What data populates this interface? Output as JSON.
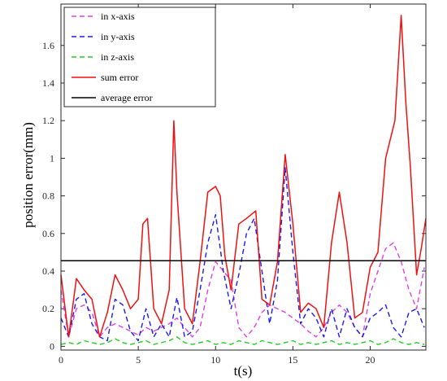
{
  "chart_data": {
    "type": "line",
    "xlabel": "t(s)",
    "ylabel": "position error(mm)",
    "xlim": [
      0,
      23.6
    ],
    "ylim": [
      -0.02,
      1.82
    ],
    "xticks": [
      0,
      5,
      10,
      15,
      20
    ],
    "xtick_labels": [
      "0",
      "5",
      "10",
      "15",
      "20"
    ],
    "yticks": [
      0,
      0.2,
      0.4,
      0.6,
      0.8,
      1.0,
      1.2,
      1.4,
      1.6
    ],
    "ytick_labels": [
      "0",
      "0.2",
      "0.4",
      "0.6",
      "0.8",
      "1",
      "1.2",
      "1.4",
      "1.6"
    ],
    "grid": false,
    "legend_position": "top-left",
    "series": [
      {
        "name": "in x-axis",
        "color": "#e040e0",
        "dash": "dashed",
        "x": [
          0,
          0.5,
          1,
          1.5,
          2,
          2.5,
          3,
          3.5,
          4,
          4.5,
          5,
          5.5,
          6,
          6.5,
          7,
          7.5,
          8,
          8.5,
          9,
          9.5,
          10,
          10.5,
          11,
          11.5,
          12,
          12.5,
          13,
          13.5,
          14,
          14.5,
          15,
          15.5,
          16,
          16.5,
          17,
          17.5,
          18,
          18.5,
          19,
          19.5,
          20,
          20.5,
          21,
          21.5,
          22,
          22.5,
          23,
          23.5
        ],
        "values": [
          0.3,
          0.05,
          0.2,
          0.22,
          0.18,
          0.05,
          0.1,
          0.12,
          0.1,
          0.08,
          0.06,
          0.1,
          0.08,
          0.1,
          0.12,
          0.15,
          0.1,
          0.05,
          0.1,
          0.3,
          0.45,
          0.4,
          0.35,
          0.1,
          0.05,
          0.1,
          0.18,
          0.22,
          0.2,
          0.18,
          0.15,
          0.12,
          0.08,
          0.05,
          0.1,
          0.18,
          0.22,
          0.18,
          0.1,
          0.05,
          0.28,
          0.4,
          0.52,
          0.55,
          0.45,
          0.3,
          0.2,
          0.42
        ]
      },
      {
        "name": "in y-axis",
        "color": "#1a1aee",
        "dash": "dashed",
        "x": [
          0,
          0.5,
          1,
          1.5,
          2,
          2.5,
          3,
          3.5,
          4,
          4.5,
          5,
          5.5,
          6,
          6.5,
          7,
          7.5,
          8,
          8.5,
          9,
          9.5,
          10,
          10.5,
          11,
          11.5,
          12,
          12.5,
          13,
          13.5,
          14,
          14.5,
          15,
          15.5,
          16,
          16.5,
          17,
          17.5,
          18,
          18.5,
          19,
          19.5,
          20,
          20.5,
          21,
          21.5,
          22,
          22.5,
          23,
          23.5
        ],
        "values": [
          0.15,
          0.05,
          0.25,
          0.28,
          0.12,
          0.05,
          0.03,
          0.25,
          0.22,
          0.08,
          0.03,
          0.2,
          0.05,
          0.12,
          0.05,
          0.26,
          0.05,
          0.08,
          0.3,
          0.55,
          0.7,
          0.4,
          0.2,
          0.38,
          0.6,
          0.68,
          0.4,
          0.12,
          0.35,
          0.95,
          0.5,
          0.12,
          0.2,
          0.15,
          0.05,
          0.2,
          0.05,
          0.2,
          0.1,
          0.05,
          0.15,
          0.18,
          0.22,
          0.1,
          0.05,
          0.18,
          0.2,
          0.1
        ]
      },
      {
        "name": "in z-axis",
        "color": "#22cc22",
        "dash": "dashed",
        "x": [
          0,
          0.5,
          1,
          1.5,
          2,
          2.5,
          3,
          3.5,
          4,
          4.5,
          5,
          5.5,
          6,
          6.5,
          7,
          7.5,
          8,
          8.5,
          9,
          9.5,
          10,
          10.5,
          11,
          11.5,
          12,
          12.5,
          13,
          13.5,
          14,
          14.5,
          15,
          15.5,
          16,
          16.5,
          17,
          17.5,
          18,
          18.5,
          19,
          19.5,
          20,
          20.5,
          21,
          21.5,
          22,
          22.5,
          23,
          23.5
        ],
        "values": [
          0.01,
          0.02,
          0.01,
          0.03,
          0.02,
          0.01,
          0.02,
          0.04,
          0.02,
          0.01,
          0.02,
          0.03,
          0.01,
          0.02,
          0.03,
          0.05,
          0.02,
          0.01,
          0.02,
          0.03,
          0.01,
          0.02,
          0.01,
          0.03,
          0.02,
          0.01,
          0.03,
          0.02,
          0.01,
          0.02,
          0.03,
          0.01,
          0.02,
          0.01,
          0.02,
          0.03,
          0.01,
          0.02,
          0.01,
          0.02,
          0.03,
          0.01,
          0.02,
          0.04,
          0.02,
          0.01,
          0.02,
          0.01
        ]
      },
      {
        "name": "sum error",
        "color": "#ee1111",
        "dash": "solid",
        "x": [
          0,
          0.5,
          1,
          1.5,
          2,
          2.5,
          3,
          3.5,
          4,
          4.5,
          5,
          5.3,
          5.6,
          6,
          6.5,
          7,
          7.3,
          7.5,
          8,
          8.5,
          9,
          9.5,
          10,
          10.3,
          10.6,
          11,
          11.5,
          12,
          12.3,
          12.6,
          13,
          13.5,
          14,
          14.5,
          15,
          15.5,
          16,
          16.5,
          17,
          17.5,
          18,
          18.5,
          19,
          19.5,
          20,
          20.5,
          21,
          21.3,
          21.6,
          22,
          22.3,
          22.6,
          23,
          23.3,
          23.6
        ],
        "values": [
          0.38,
          0.05,
          0.36,
          0.3,
          0.25,
          0.05,
          0.18,
          0.38,
          0.3,
          0.2,
          0.25,
          0.65,
          0.68,
          0.2,
          0.12,
          0.3,
          1.2,
          0.82,
          0.2,
          0.12,
          0.45,
          0.82,
          0.85,
          0.8,
          0.48,
          0.3,
          0.65,
          0.68,
          0.7,
          0.72,
          0.25,
          0.22,
          0.45,
          1.02,
          0.65,
          0.18,
          0.23,
          0.2,
          0.1,
          0.55,
          0.82,
          0.55,
          0.15,
          0.18,
          0.42,
          0.5,
          1.0,
          1.1,
          1.2,
          1.76,
          1.3,
          0.95,
          0.38,
          0.52,
          0.68
        ]
      },
      {
        "name": "average error",
        "color": "#000000",
        "dash": "solid",
        "x": [
          0,
          23.6
        ],
        "values": [
          0.455,
          0.455
        ]
      }
    ]
  }
}
